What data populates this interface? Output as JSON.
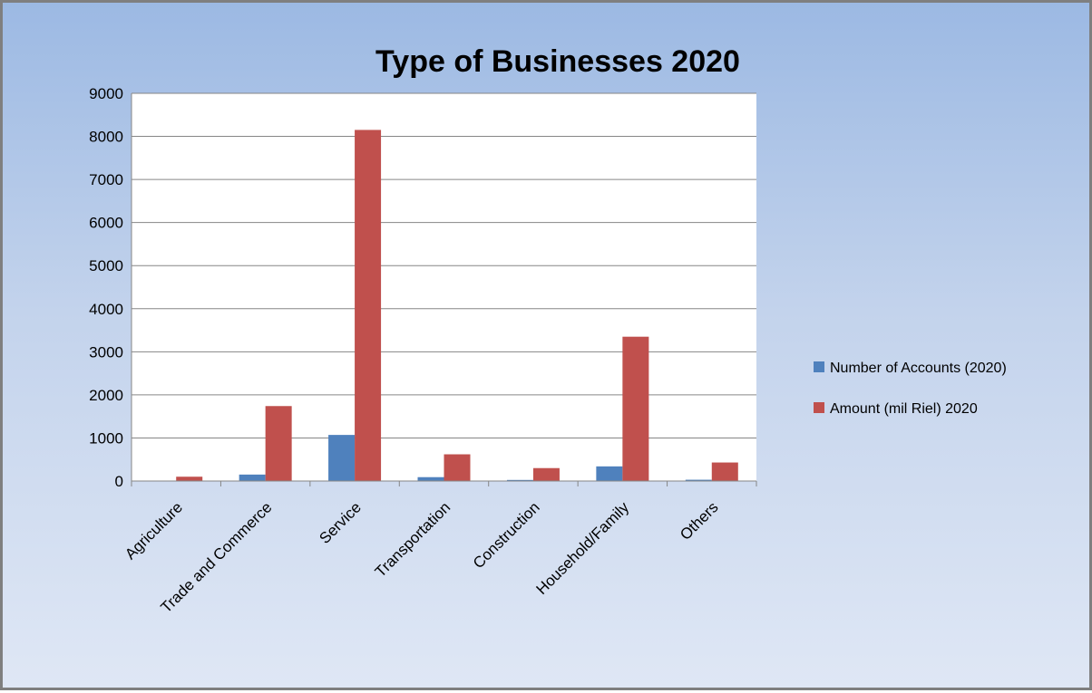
{
  "chart_data": {
    "type": "bar",
    "title": "Type of Businesses 2020",
    "categories": [
      "Agriculture",
      "Trade and Commerce",
      "Service",
      "Transportation",
      "Construction",
      "Household/Family",
      "Others"
    ],
    "series": [
      {
        "name": "Number of Accounts (2020)",
        "color": "#4f81bd",
        "values": [
          8,
          150,
          1070,
          90,
          25,
          340,
          30
        ]
      },
      {
        "name": "Amount (mil Riel) 2020",
        "color": "#c0504d",
        "values": [
          100,
          1740,
          8150,
          620,
          300,
          3350,
          430
        ]
      }
    ],
    "ylim": [
      0,
      9000
    ],
    "yticks": [
      0,
      1000,
      2000,
      3000,
      4000,
      5000,
      6000,
      7000,
      8000,
      9000
    ],
    "grid": true,
    "legend_position": "right"
  }
}
